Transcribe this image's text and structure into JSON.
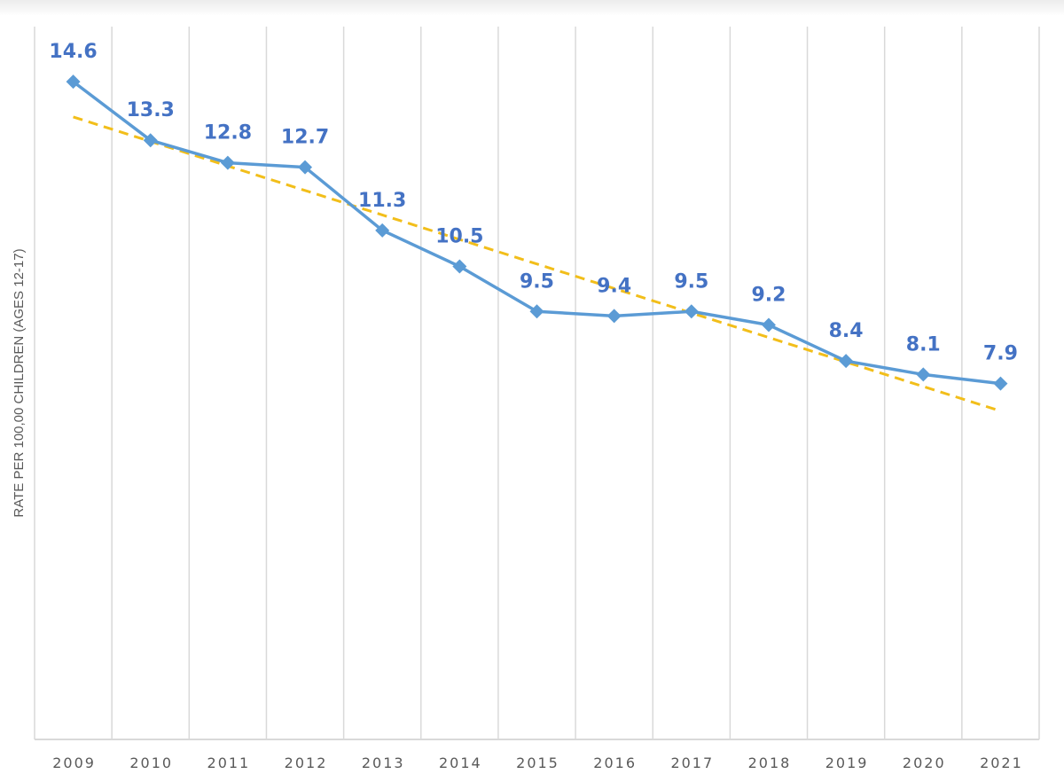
{
  "chart_data": {
    "type": "line",
    "title": "",
    "xlabel": "",
    "ylabel": "RATE PER 100,00 CHILDREN (AGES 12-17)",
    "categories": [
      "2009",
      "2010",
      "2011",
      "2012",
      "2013",
      "2014",
      "2015",
      "2016",
      "2017",
      "2018",
      "2019",
      "2020",
      "2021"
    ],
    "series": [
      {
        "values": [
          14.6,
          13.3,
          12.8,
          12.7,
          11.3,
          10.5,
          9.5,
          9.4,
          9.5,
          9.2,
          8.4,
          8.1,
          7.9
        ],
        "color": "#5B9BD5",
        "marker": "diamond",
        "data_labels": true
      }
    ],
    "trendline": {
      "type": "linear",
      "style": "dashed",
      "color": "#F2BE1A"
    },
    "ylim": [
      0,
      16
    ],
    "y_axis_ticks_shown": false,
    "grid": {
      "vertical": true,
      "horizontal": false
    },
    "label_color": "#4472C4"
  }
}
